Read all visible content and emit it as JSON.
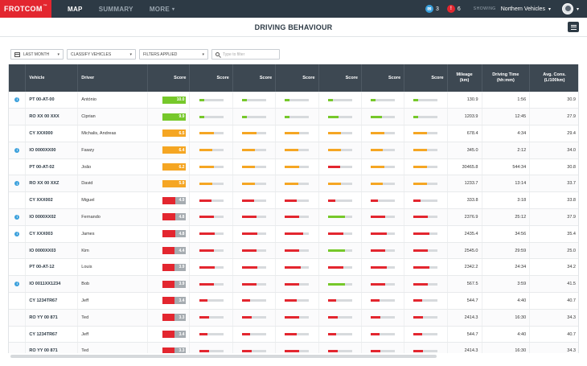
{
  "colors": {
    "green": "#76c82a",
    "orange": "#f5a623",
    "red": "#e3262f",
    "grey": "#a6acb1",
    "track": "#d7dadd"
  },
  "topbar": {
    "logo": "FROTCOM",
    "logo_mark": "™",
    "nav": [
      {
        "label": "MAP",
        "active": true
      },
      {
        "label": "SUMMARY",
        "active": false
      },
      {
        "label": "MORE",
        "active": false
      }
    ],
    "messages_count": "3",
    "alerts_count": "6",
    "showing_label": "SHOWING",
    "fleet": "Northern Vehicles"
  },
  "page": {
    "title": "DRIVING BEHAVIOUR"
  },
  "filters": {
    "period": "LAST MONTH",
    "classify": "CLASSIFY VEHICLES",
    "applied": "FILTERS APPLIED",
    "search_placeholder": "Type to filter"
  },
  "table": {
    "headers": {
      "vehicle": "Vehicle",
      "driver": "Driver",
      "score": "Score",
      "mileage": "Mileage",
      "mileage_unit": "(km)",
      "driving_time": "Driving Time",
      "driving_time_unit": "(hh:mm)",
      "avg_cons": "Avg. Cons.",
      "avg_cons_unit": "(L/100km)"
    },
    "rows": [
      {
        "info": true,
        "vehicle": "PT 00-AT-00",
        "driver": "António",
        "score": "10.0",
        "score_frac": 1.0,
        "score_color": "green",
        "minis": [
          [
            "green",
            0.2
          ],
          [
            "green",
            0.2
          ],
          [
            "green",
            0.2
          ],
          [
            "green",
            0.2
          ],
          [
            "green",
            0.2
          ],
          [
            "green",
            0.2
          ]
        ],
        "mileage": "130.9",
        "time": "1:56",
        "cons": "30.9"
      },
      {
        "info": false,
        "vehicle": "RO XX 00 XXX",
        "driver": "Ciprian",
        "score": "9.9",
        "score_frac": 1.0,
        "score_color": "green",
        "minis": [
          [
            "green",
            0.2
          ],
          [
            "green",
            0.2
          ],
          [
            "green",
            0.2
          ],
          [
            "green",
            0.45
          ],
          [
            "green",
            0.45
          ],
          [
            "green",
            0.2
          ]
        ],
        "mileage": "1203.9",
        "time": "12:45",
        "cons": "27.9"
      },
      {
        "info": false,
        "vehicle": "CY XXX000",
        "driver": "Michalis, Andreas",
        "score": "6.5",
        "score_frac": 1.0,
        "score_color": "orange",
        "minis": [
          [
            "orange",
            0.6
          ],
          [
            "orange",
            0.6
          ],
          [
            "orange",
            0.6
          ],
          [
            "orange",
            0.55
          ],
          [
            "orange",
            0.55
          ],
          [
            "orange",
            0.55
          ]
        ],
        "mileage": "678.4",
        "time": "4:34",
        "cons": "29.4"
      },
      {
        "info": true,
        "vehicle": "IO 0000XX00",
        "driver": "Fawzy",
        "score": "6.4",
        "score_frac": 1.0,
        "score_color": "orange",
        "minis": [
          [
            "orange",
            0.55
          ],
          [
            "orange",
            0.55
          ],
          [
            "orange",
            0.55
          ],
          [
            "orange",
            0.55
          ],
          [
            "orange",
            0.5
          ],
          [
            "orange",
            0.55
          ]
        ],
        "mileage": "345.0",
        "time": "2:12",
        "cons": "34.0"
      },
      {
        "info": false,
        "vehicle": "PT 00-AT-02",
        "driver": "João",
        "score": "6.2",
        "score_frac": 1.0,
        "score_color": "orange",
        "minis": [
          [
            "orange",
            0.6
          ],
          [
            "orange",
            0.55
          ],
          [
            "orange",
            0.6
          ],
          [
            "red",
            0.5
          ],
          [
            "orange",
            0.55
          ],
          [
            "orange",
            0.55
          ]
        ],
        "mileage": "30465.8",
        "time": "544:34",
        "cons": "30.8"
      },
      {
        "info": true,
        "vehicle": "RO XX 00 XXZ",
        "driver": "David",
        "score": "5.9",
        "score_frac": 1.0,
        "score_color": "orange",
        "minis": [
          [
            "orange",
            0.55
          ],
          [
            "orange",
            0.55
          ],
          [
            "orange",
            0.55
          ],
          [
            "orange",
            0.55
          ],
          [
            "orange",
            0.5
          ],
          [
            "orange",
            0.55
          ]
        ],
        "mileage": "1233.7",
        "time": "13:14",
        "cons": "33.7"
      },
      {
        "info": false,
        "vehicle": "CY XXX002",
        "driver": "Miguel",
        "score": "4.9",
        "score_frac": 0.55,
        "score_color": "red",
        "minis": [
          [
            "red",
            0.5
          ],
          [
            "red",
            0.5
          ],
          [
            "red",
            0.5
          ],
          [
            "red",
            0.3
          ],
          [
            "red",
            0.3
          ],
          [
            "red",
            0.3
          ]
        ],
        "mileage": "333.8",
        "time": "3:18",
        "cons": "33.8"
      },
      {
        "info": true,
        "vehicle": "IO 0000XX02",
        "driver": "Fernando",
        "score": "4.8",
        "score_frac": 0.55,
        "score_color": "red",
        "minis": [
          [
            "red",
            0.6
          ],
          [
            "red",
            0.6
          ],
          [
            "red",
            0.6
          ],
          [
            "green",
            0.7
          ],
          [
            "red",
            0.6
          ],
          [
            "red",
            0.6
          ]
        ],
        "mileage": "2376.9",
        "time": "25:12",
        "cons": "37.9"
      },
      {
        "info": true,
        "vehicle": "CY XXX003",
        "driver": "James",
        "score": "4.8",
        "score_frac": 0.55,
        "score_color": "red",
        "minis": [
          [
            "red",
            0.65
          ],
          [
            "red",
            0.65
          ],
          [
            "red",
            0.75
          ],
          [
            "red",
            0.65
          ],
          [
            "red",
            0.65
          ],
          [
            "red",
            0.65
          ]
        ],
        "mileage": "2435.4",
        "time": "34:56",
        "cons": "35.4"
      },
      {
        "info": false,
        "vehicle": "IO 0000XX03",
        "driver": "Kim",
        "score": "4.4",
        "score_frac": 0.5,
        "score_color": "red",
        "minis": [
          [
            "red",
            0.6
          ],
          [
            "red",
            0.6
          ],
          [
            "red",
            0.6
          ],
          [
            "green",
            0.7
          ],
          [
            "red",
            0.6
          ],
          [
            "red",
            0.6
          ]
        ],
        "mileage": "2545.0",
        "time": "29:59",
        "cons": "25.0"
      },
      {
        "info": false,
        "vehicle": "PT 00-AT-12",
        "driver": "Louis",
        "score": "3.9",
        "score_frac": 0.5,
        "score_color": "red",
        "minis": [
          [
            "red",
            0.65
          ],
          [
            "red",
            0.65
          ],
          [
            "red",
            0.65
          ],
          [
            "red",
            0.65
          ],
          [
            "red",
            0.65
          ],
          [
            "red",
            0.65
          ]
        ],
        "mileage": "2342.2",
        "time": "24:34",
        "cons": "34.2"
      },
      {
        "info": true,
        "vehicle": "IO 0011XX1234",
        "driver": "Bob",
        "score": "3.9",
        "score_frac": 0.5,
        "score_color": "red",
        "minis": [
          [
            "red",
            0.6
          ],
          [
            "red",
            0.6
          ],
          [
            "red",
            0.6
          ],
          [
            "green",
            0.7
          ],
          [
            "red",
            0.6
          ],
          [
            "red",
            0.6
          ]
        ],
        "mileage": "567.5",
        "time": "3:59",
        "cons": "41.5"
      },
      {
        "info": false,
        "vehicle": "CY 1234TR67",
        "driver": "Jeff",
        "score": "3.4",
        "score_frac": 0.5,
        "score_color": "red",
        "minis": [
          [
            "red",
            0.35
          ],
          [
            "red",
            0.35
          ],
          [
            "red",
            0.5
          ],
          [
            "red",
            0.35
          ],
          [
            "red",
            0.35
          ],
          [
            "red",
            0.35
          ]
        ],
        "mileage": "544.7",
        "time": "4:40",
        "cons": "40.7"
      },
      {
        "info": false,
        "vehicle": "RO YY 00 871",
        "driver": "Ted",
        "score": "3.3",
        "score_frac": 0.5,
        "score_color": "red",
        "minis": [
          [
            "red",
            0.4
          ],
          [
            "red",
            0.4
          ],
          [
            "red",
            0.6
          ],
          [
            "red",
            0.4
          ],
          [
            "red",
            0.4
          ],
          [
            "red",
            0.4
          ]
        ],
        "mileage": "2414.3",
        "time": "16:30",
        "cons": "34.3"
      },
      {
        "info": false,
        "vehicle": "CY 1234TR67",
        "driver": "Jeff",
        "score": "3.4",
        "score_frac": 0.5,
        "score_color": "red",
        "minis": [
          [
            "red",
            0.35
          ],
          [
            "red",
            0.35
          ],
          [
            "red",
            0.5
          ],
          [
            "red",
            0.35
          ],
          [
            "red",
            0.35
          ],
          [
            "red",
            0.35
          ]
        ],
        "mileage": "544.7",
        "time": "4:40",
        "cons": "40.7"
      },
      {
        "info": false,
        "vehicle": "RO YY 00 871",
        "driver": "Ted",
        "score": "3.3",
        "score_frac": 0.5,
        "score_color": "red",
        "minis": [
          [
            "red",
            0.4
          ],
          [
            "red",
            0.4
          ],
          [
            "red",
            0.6
          ],
          [
            "red",
            0.4
          ],
          [
            "red",
            0.4
          ],
          [
            "red",
            0.4
          ]
        ],
        "mileage": "2414.3",
        "time": "16:30",
        "cons": "34.3"
      }
    ]
  }
}
